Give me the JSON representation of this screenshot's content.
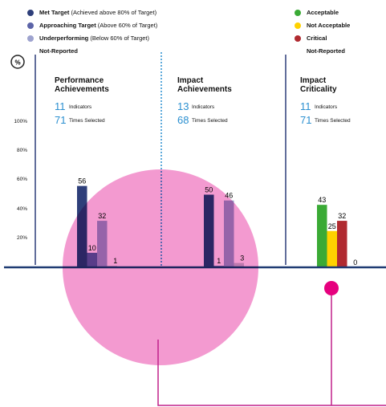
{
  "chart_data": {
    "type": "bar",
    "unit_icon": "%",
    "ylim": [
      0,
      100
    ],
    "yticks": [
      {
        "value": 20,
        "label": "20%"
      },
      {
        "value": 40,
        "label": "40%"
      },
      {
        "value": 60,
        "label": "60%"
      },
      {
        "value": 80,
        "label": "80%"
      },
      {
        "value": 100,
        "label": "100%"
      }
    ],
    "legends": [
      [
        {
          "name": "Met Target",
          "desc": "(Achieved above 80% of Target)",
          "color": "#2e3f7a"
        },
        {
          "name": "Approaching Target",
          "desc": "(Above 60% of Target)",
          "color": "#5c64a8"
        },
        {
          "name": "Underperforming",
          "desc": "(Below 60% of Target)",
          "color": "#9ea3cf"
        },
        {
          "name": "Not-Reported",
          "color": "#c9c9d6"
        }
      ],
      [
        {
          "name": "Acceptable",
          "color": "#3aaa35"
        },
        {
          "name": "Not Acceptable",
          "color": "#ffd200"
        },
        {
          "name": "Critical",
          "color": "#b02a30"
        },
        {
          "name": "Not-Reported",
          "color": "#c9c9d6"
        }
      ]
    ],
    "panels": [
      {
        "title": "Performance Achievements",
        "indicators": 11,
        "indicators_label": "Indicators",
        "times": 71,
        "times_label": "Times Selected",
        "legend": 0,
        "values": [
          56,
          10,
          32,
          1
        ]
      },
      {
        "title": "Impact Achievements",
        "indicators": 13,
        "indicators_label": "Indicators",
        "times": 68,
        "times_label": "Times Selected",
        "legend": 0,
        "values": [
          50,
          1,
          46,
          3
        ]
      },
      {
        "title": "Impact Criticality",
        "indicators": 11,
        "indicators_label": "Indicators",
        "times": 71,
        "times_label": "Times Selected",
        "legend": 1,
        "values": [
          43,
          25,
          32,
          0
        ]
      }
    ]
  }
}
